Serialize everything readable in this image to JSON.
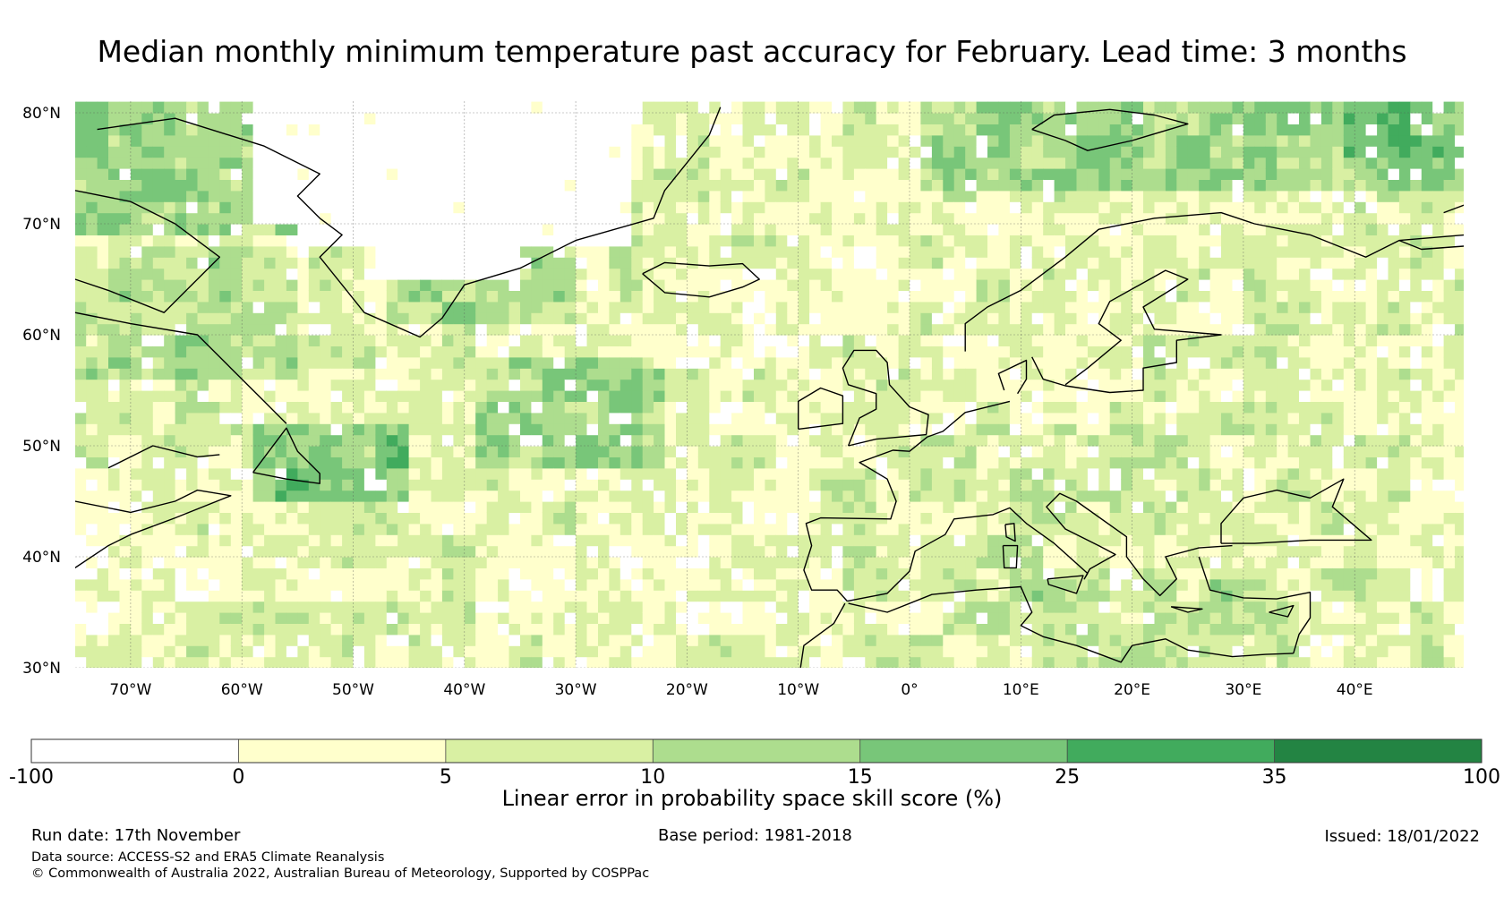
{
  "title": "Median monthly minimum temperature past accuracy for February. Lead time: 3 months",
  "map": {
    "lon_range": [
      -75,
      50
    ],
    "lat_range": [
      30,
      81
    ],
    "lat_ticks": [
      {
        "value": 80,
        "label": "80°N"
      },
      {
        "value": 70,
        "label": "70°N"
      },
      {
        "value": 60,
        "label": "60°N"
      },
      {
        "value": 50,
        "label": "50°N"
      },
      {
        "value": 40,
        "label": "40°N"
      },
      {
        "value": 30,
        "label": "30°N"
      }
    ],
    "lon_ticks": [
      {
        "value": -70,
        "label": "70°W"
      },
      {
        "value": -60,
        "label": "60°W"
      },
      {
        "value": -50,
        "label": "50°W"
      },
      {
        "value": -40,
        "label": "40°W"
      },
      {
        "value": -30,
        "label": "30°W"
      },
      {
        "value": -20,
        "label": "20°W"
      },
      {
        "value": -10,
        "label": "10°W"
      },
      {
        "value": 0,
        "label": "0°"
      },
      {
        "value": 10,
        "label": "10°E"
      },
      {
        "value": 20,
        "label": "20°E"
      },
      {
        "value": 30,
        "label": "30°E"
      },
      {
        "value": 40,
        "label": "40°E"
      }
    ]
  },
  "colorbar": {
    "bins": [
      {
        "from": -100,
        "to": 0,
        "color": "#ffffff"
      },
      {
        "from": 0,
        "to": 5,
        "color": "#ffffcc"
      },
      {
        "from": 5,
        "to": 10,
        "color": "#d9f0a3"
      },
      {
        "from": 10,
        "to": 15,
        "color": "#addd8e"
      },
      {
        "from": 15,
        "to": 25,
        "color": "#78c679"
      },
      {
        "from": 25,
        "to": 35,
        "color": "#41ab5d"
      },
      {
        "from": 35,
        "to": 100,
        "color": "#238443"
      }
    ],
    "tick_labels": [
      "-100",
      "0",
      "5",
      "10",
      "15",
      "25",
      "35",
      "100"
    ],
    "label": "Linear error in probability space skill score (%)"
  },
  "footer": {
    "run_date": "Run date: 17th November",
    "base_period": "Base period: 1981-2018",
    "issued": "Issued: 18/01/2022",
    "data_source": "Data source: ACCESS-S2 and ERA5 Climate Reanalysis",
    "copyright": "© Commonwealth of Australia 2022, Australian Bureau of Meteorology, Supported by COSPPac"
  }
}
